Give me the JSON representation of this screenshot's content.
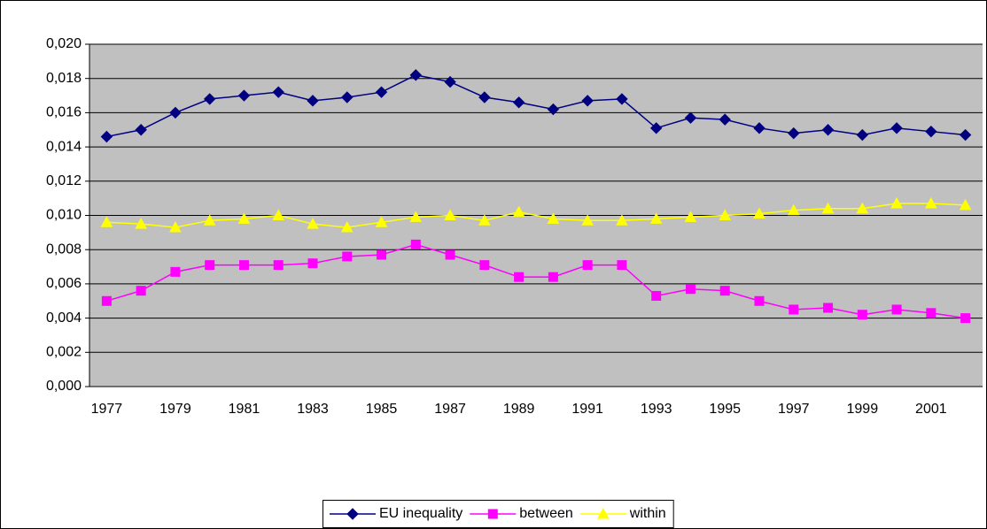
{
  "chart_data": {
    "type": "line",
    "categories": [
      "1977",
      null,
      "1979",
      null,
      "1981",
      null,
      "1983",
      null,
      "1985",
      null,
      "1987",
      null,
      "1989",
      null,
      "1991",
      null,
      "1993",
      null,
      "1995",
      null,
      "1997",
      null,
      "1999",
      null,
      "2001",
      null
    ],
    "series": [
      {
        "name": "EU inequality",
        "color": "#000080",
        "marker": "diamond",
        "values": [
          0.0146,
          0.015,
          0.016,
          0.0168,
          0.017,
          0.0172,
          0.0167,
          0.0169,
          0.0172,
          0.0182,
          0.0178,
          0.0169,
          0.0166,
          0.0162,
          0.0167,
          0.0168,
          0.0151,
          0.0157,
          0.0156,
          0.0151,
          0.0148,
          0.015,
          0.0147,
          0.0151,
          0.0149,
          0.0147
        ]
      },
      {
        "name": "between",
        "color": "#ff00ff",
        "marker": "square",
        "values": [
          0.005,
          0.0056,
          0.0067,
          0.0071,
          0.0071,
          0.0071,
          0.0072,
          0.0076,
          0.0077,
          0.0083,
          0.0077,
          0.0071,
          0.0064,
          0.0064,
          0.0071,
          0.0071,
          0.0053,
          0.0057,
          0.0056,
          0.005,
          0.0045,
          0.0046,
          0.0042,
          0.0045,
          0.0043,
          0.004
        ]
      },
      {
        "name": "within",
        "color": "#ffff00",
        "marker": "triangle",
        "values": [
          0.0096,
          0.0095,
          0.0093,
          0.0097,
          0.0098,
          0.01,
          0.0095,
          0.0093,
          0.0096,
          0.0099,
          0.01,
          0.0097,
          0.0102,
          0.0098,
          0.0097,
          0.0097,
          0.0098,
          0.0099,
          0.01,
          0.0101,
          0.0103,
          0.0104,
          0.0104,
          0.0107,
          0.0107,
          0.0106
        ]
      }
    ],
    "ylim": [
      0,
      0.02
    ],
    "yticks": [
      {
        "value": 0,
        "label": "0,000"
      },
      {
        "value": 0.002,
        "label": "0,002"
      },
      {
        "value": 0.004,
        "label": "0,004"
      },
      {
        "value": 0.006,
        "label": "0,006"
      },
      {
        "value": 0.008,
        "label": "0,008"
      },
      {
        "value": 0.01,
        "label": "0,010"
      },
      {
        "value": 0.012,
        "label": "0,012"
      },
      {
        "value": 0.014,
        "label": "0,014"
      },
      {
        "value": 0.016,
        "label": "0,016"
      },
      {
        "value": 0.018,
        "label": "0,018"
      },
      {
        "value": 0.02,
        "label": "0,020"
      }
    ],
    "grid": true,
    "plot_background": "#c0c0c0",
    "legend": "bottom"
  }
}
